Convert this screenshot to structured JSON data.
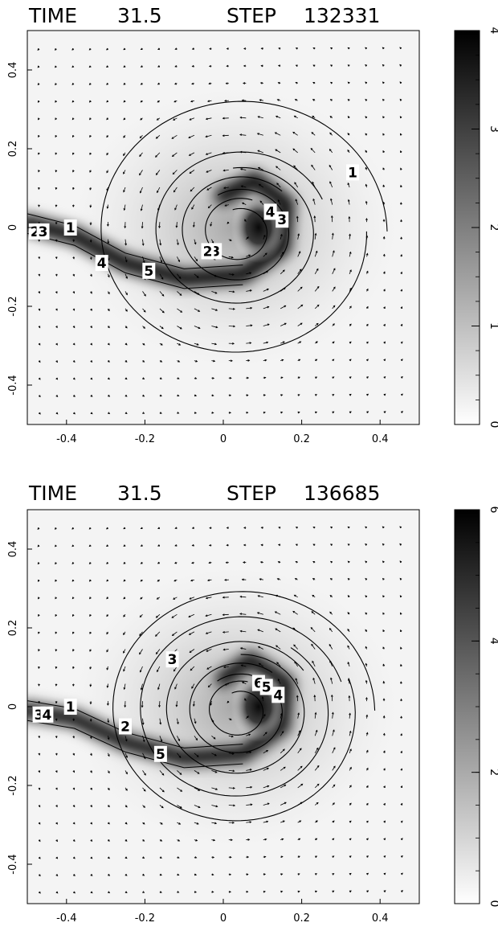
{
  "chart_data": [
    {
      "type": "heatmap",
      "title_time_label": "TIME",
      "title_time_value": "31.5",
      "title_step_label": "STEP",
      "title_step_value": "132331",
      "xlim": [
        -0.5,
        0.5
      ],
      "ylim": [
        -0.5,
        0.5
      ],
      "x_ticks": [
        "-0.4",
        "-0.2",
        "0",
        "0.2",
        "0.4"
      ],
      "x_tick_values": [
        -0.4,
        -0.2,
        0,
        0.2,
        0.4
      ],
      "y_ticks": [
        "0.4",
        "0.2",
        "0",
        "-0.2",
        "-0.4"
      ],
      "y_tick_values": [
        0.4,
        0.2,
        0,
        -0.2,
        -0.4
      ],
      "colorbar": {
        "min": 0,
        "max": 4,
        "ticks": [
          "0",
          "1",
          "2",
          "3",
          "4"
        ],
        "tick_values": [
          0,
          1,
          2,
          3,
          4
        ]
      },
      "contour_labels": [
        {
          "text": "1",
          "x": 0.33,
          "y": 0.14
        },
        {
          "text": "1",
          "x": -0.39,
          "y": 0.0
        },
        {
          "text": "2",
          "x": -0.48,
          "y": -0.01
        },
        {
          "text": "3",
          "x": -0.46,
          "y": -0.01
        },
        {
          "text": "4",
          "x": -0.31,
          "y": -0.09
        },
        {
          "text": "5",
          "x": -0.19,
          "y": -0.11
        },
        {
          "text": "3",
          "x": -0.02,
          "y": -0.06
        },
        {
          "text": "2",
          "x": -0.04,
          "y": -0.06
        },
        {
          "text": "4",
          "x": 0.12,
          "y": 0.04
        },
        {
          "text": "3",
          "x": 0.15,
          "y": 0.02
        }
      ],
      "grid": false,
      "vector_field": true,
      "colormap": "grayscale (white = low, black = high)"
    },
    {
      "type": "heatmap",
      "title_time_label": "TIME",
      "title_time_value": "31.5",
      "title_step_label": "STEP",
      "title_step_value": "136685",
      "xlim": [
        -0.5,
        0.5
      ],
      "ylim": [
        -0.5,
        0.5
      ],
      "x_ticks": [
        "-0.4",
        "-0.2",
        "0",
        "0.2",
        "0.4"
      ],
      "x_tick_values": [
        -0.4,
        -0.2,
        0,
        0.2,
        0.4
      ],
      "y_ticks": [
        "0.4",
        "0.2",
        "0",
        "-0.2",
        "-0.4"
      ],
      "y_tick_values": [
        0.4,
        0.2,
        0,
        -0.2,
        -0.4
      ],
      "colorbar": {
        "min": 0,
        "max": 6,
        "ticks": [
          "0",
          "2",
          "4",
          "6"
        ],
        "tick_values": [
          0,
          2,
          4,
          6
        ]
      },
      "contour_labels": [
        {
          "text": "1",
          "x": -0.39,
          "y": 0.0
        },
        {
          "text": "3",
          "x": -0.47,
          "y": -0.02
        },
        {
          "text": "4",
          "x": -0.45,
          "y": -0.02
        },
        {
          "text": "2",
          "x": -0.25,
          "y": -0.05
        },
        {
          "text": "5",
          "x": -0.16,
          "y": -0.12
        },
        {
          "text": "3",
          "x": -0.13,
          "y": 0.12
        },
        {
          "text": "6",
          "x": 0.09,
          "y": 0.06
        },
        {
          "text": "5",
          "x": 0.11,
          "y": 0.05
        },
        {
          "text": "4",
          "x": 0.14,
          "y": 0.03
        }
      ],
      "grid": false,
      "vector_field": true,
      "colormap": "grayscale (white = low, black = high)"
    }
  ]
}
